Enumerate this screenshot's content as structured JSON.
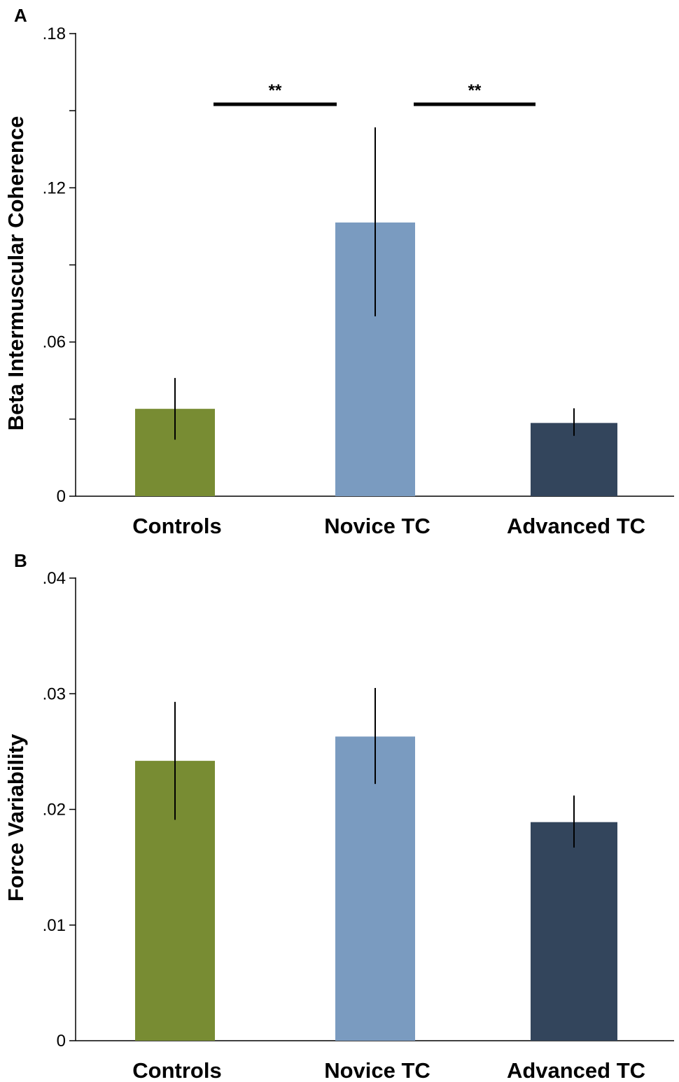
{
  "colors": {
    "controls": "#788c33",
    "novice": "#7a9bc0",
    "advanced": "#33455c",
    "axis": "#000000"
  },
  "chart_data": [
    {
      "panel": "A",
      "type": "bar",
      "title": "",
      "xlabel": "",
      "ylabel": "Beta Intermuscular Coherence",
      "ylim": [
        0,
        0.18
      ],
      "yticks": [
        0,
        0.03,
        0.06,
        0.09,
        0.12,
        0.15,
        0.18
      ],
      "ytick_labels": [
        "0",
        "",
        ".06",
        "",
        ".12",
        "",
        ".18"
      ],
      "categories": [
        "Controls",
        "Novice TC",
        "Advanced TC"
      ],
      "values": [
        0.034,
        0.1065,
        0.0285
      ],
      "error_low": [
        0.022,
        0.07,
        0.0235
      ],
      "error_high": [
        0.046,
        0.1435,
        0.0342
      ],
      "significance": [
        {
          "from": 0,
          "to": 1,
          "label": "**",
          "y": 0.1525
        },
        {
          "from": 1,
          "to": 2,
          "label": "**",
          "y": 0.1525
        }
      ],
      "grid": false
    },
    {
      "panel": "B",
      "type": "bar",
      "title": "",
      "xlabel": "",
      "ylabel": "Force Variability",
      "ylim": [
        0,
        0.04
      ],
      "yticks": [
        0,
        0.01,
        0.02,
        0.03,
        0.04
      ],
      "ytick_labels": [
        "0",
        ".01",
        ".02",
        ".03",
        ".04"
      ],
      "categories": [
        "Controls",
        "Novice TC",
        "Advanced TC"
      ],
      "values": [
        0.0242,
        0.0263,
        0.0189
      ],
      "error_low": [
        0.0191,
        0.0222,
        0.0167
      ],
      "error_high": [
        0.0293,
        0.0305,
        0.0212
      ],
      "significance": [],
      "grid": false
    }
  ]
}
